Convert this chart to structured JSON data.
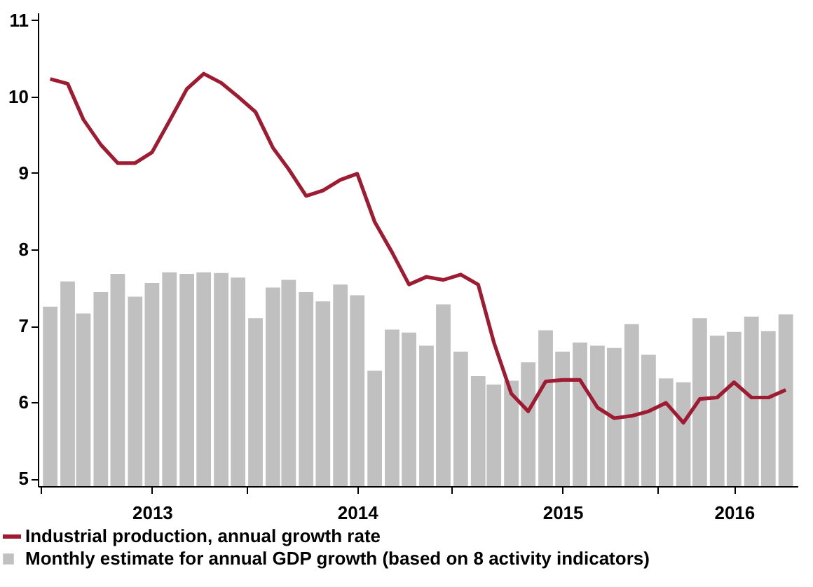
{
  "chart_data": {
    "type": "bar",
    "x": [
      "2013-01",
      "2013-02",
      "2013-03",
      "2013-04",
      "2013-05",
      "2013-06",
      "2013-07",
      "2013-08",
      "2013-09",
      "2013-10",
      "2013-11",
      "2013-12",
      "2014-01",
      "2014-02",
      "2014-03",
      "2014-04",
      "2014-05",
      "2014-06",
      "2014-07",
      "2014-08",
      "2014-09",
      "2014-10",
      "2014-11",
      "2014-12",
      "2015-01",
      "2015-02",
      "2015-03",
      "2015-04",
      "2015-05",
      "2015-06",
      "2015-07",
      "2015-08",
      "2015-09",
      "2015-10",
      "2015-11",
      "2015-12",
      "2016-01",
      "2016-02",
      "2016-03",
      "2016-04",
      "2016-05",
      "2016-06",
      "2016-07",
      "2016-08"
    ],
    "series": [
      {
        "name": "Industrial production, annual growth rate",
        "type": "line",
        "color": "#9e1b32",
        "values": [
          10.23,
          10.17,
          9.7,
          9.37,
          9.13,
          9.13,
          9.27,
          9.68,
          10.1,
          10.3,
          10.18,
          10.0,
          9.8,
          9.33,
          9.05,
          8.7,
          8.77,
          8.91,
          8.99,
          8.36,
          7.96,
          7.54,
          7.64,
          7.6,
          7.67,
          7.54,
          6.78,
          6.11,
          5.88,
          6.27,
          6.29,
          6.29,
          5.93,
          5.79,
          5.82,
          5.88,
          5.99,
          5.73,
          6.04,
          6.06,
          6.26,
          6.06,
          6.06,
          6.16
        ]
      },
      {
        "name": "Monthly estimate for annual GDP growth (based on 8 activity indicators)",
        "type": "bar",
        "color": "#c0c0c0",
        "values": [
          7.25,
          7.58,
          7.16,
          7.44,
          7.68,
          7.38,
          7.56,
          7.7,
          7.68,
          7.7,
          7.69,
          7.63,
          7.1,
          7.5,
          7.6,
          7.44,
          7.32,
          7.54,
          7.4,
          6.41,
          6.95,
          6.91,
          6.74,
          7.28,
          6.66,
          6.34,
          6.23,
          6.28,
          6.52,
          6.94,
          6.66,
          6.78,
          6.74,
          6.71,
          7.02,
          6.62,
          6.31,
          6.26,
          7.1,
          6.87,
          6.92,
          7.12,
          6.93,
          7.15
        ]
      }
    ],
    "xlim": [
      "2012-12-10",
      "2016-08-22"
    ],
    "xticks": [
      {
        "value": "2012-12-16",
        "label": null
      },
      {
        "value": "2013-07-01",
        "label": "2013"
      },
      {
        "value": "2013-12-16",
        "label": null
      },
      {
        "value": "2014-07-01",
        "label": "2014"
      },
      {
        "value": "2014-12-16",
        "label": null
      },
      {
        "value": "2015-07-01",
        "label": "2015"
      },
      {
        "value": "2015-12-16",
        "label": null
      },
      {
        "value": "2016-05-01",
        "label": "2016"
      }
    ],
    "ylim": [
      4.9,
      11.1
    ],
    "yticks": [
      5,
      6,
      7,
      8,
      9,
      10,
      11
    ],
    "grid": false,
    "legend": "bottom"
  }
}
